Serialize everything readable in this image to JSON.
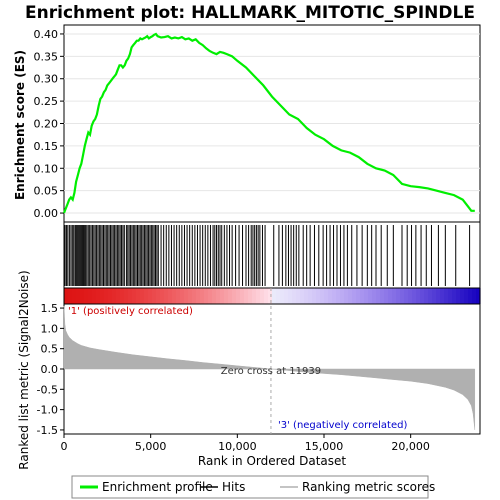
{
  "chart_data": {
    "type": "line",
    "title": "Enrichment plot: HALLMARK_MITOTIC_SPINDLE",
    "top_panel": {
      "ylabel": "Enrichment score (ES)",
      "ylim": [
        -0.02,
        0.42
      ],
      "yticks": [
        "0.00",
        "0.05",
        "0.10",
        "0.15",
        "0.20",
        "0.25",
        "0.30",
        "0.35",
        "0.40"
      ],
      "series": [
        {
          "name": "Enrichment profile",
          "color": "#00ee00",
          "x": [
            0,
            100,
            200,
            300,
            400,
            500,
            600,
            700,
            800,
            900,
            1000,
            1100,
            1200,
            1300,
            1400,
            1500,
            1600,
            1700,
            1800,
            1900,
            2000,
            2100,
            2200,
            2300,
            2400,
            2500,
            2600,
            2700,
            2800,
            2900,
            3000,
            3100,
            3200,
            3300,
            3400,
            3500,
            3600,
            3700,
            3800,
            3900,
            4000,
            4100,
            4200,
            4300,
            4400,
            4500,
            4600,
            4700,
            4800,
            4900,
            5000,
            5100,
            5200,
            5300,
            5400,
            5600,
            5800,
            6000,
            6200,
            6400,
            6600,
            6800,
            7000,
            7200,
            7400,
            7600,
            7800,
            8000,
            8200,
            8400,
            8600,
            8800,
            9000,
            9200,
            9400,
            9700,
            10000,
            10500,
            11000,
            11500,
            12000,
            12500,
            13000,
            13500,
            14000,
            14500,
            15000,
            15500,
            16000,
            16500,
            17000,
            17500,
            18000,
            18500,
            19000,
            19500,
            20000,
            20500,
            21000,
            21500,
            22000,
            22500,
            23000,
            23300,
            23500,
            23700
          ],
          "y": [
            0.0,
            0.01,
            0.02,
            0.03,
            0.035,
            0.03,
            0.045,
            0.07,
            0.085,
            0.1,
            0.11,
            0.13,
            0.15,
            0.165,
            0.18,
            0.175,
            0.195,
            0.205,
            0.21,
            0.22,
            0.24,
            0.255,
            0.26,
            0.27,
            0.275,
            0.285,
            0.29,
            0.295,
            0.3,
            0.305,
            0.31,
            0.32,
            0.33,
            0.33,
            0.325,
            0.33,
            0.34,
            0.345,
            0.355,
            0.37,
            0.375,
            0.38,
            0.385,
            0.385,
            0.39,
            0.388,
            0.39,
            0.392,
            0.395,
            0.39,
            0.393,
            0.395,
            0.398,
            0.4,
            0.395,
            0.392,
            0.393,
            0.395,
            0.39,
            0.392,
            0.39,
            0.393,
            0.388,
            0.39,
            0.385,
            0.388,
            0.38,
            0.375,
            0.368,
            0.362,
            0.358,
            0.355,
            0.36,
            0.358,
            0.355,
            0.35,
            0.34,
            0.325,
            0.305,
            0.285,
            0.26,
            0.24,
            0.22,
            0.21,
            0.19,
            0.175,
            0.165,
            0.15,
            0.14,
            0.135,
            0.125,
            0.11,
            0.1,
            0.095,
            0.085,
            0.065,
            0.06,
            0.058,
            0.055,
            0.05,
            0.045,
            0.04,
            0.03,
            0.015,
            0.005,
            0.005
          ]
        }
      ]
    },
    "hits_x": [
      60,
      140,
      220,
      310,
      400,
      480,
      560,
      640,
      700,
      760,
      820,
      880,
      940,
      1000,
      1060,
      1120,
      1190,
      1250,
      1320,
      1400,
      1480,
      1560,
      1640,
      1720,
      1800,
      1880,
      1960,
      2040,
      2120,
      2200,
      2280,
      2360,
      2440,
      2520,
      2600,
      2680,
      2760,
      2840,
      2920,
      3000,
      3080,
      3160,
      3240,
      3320,
      3400,
      3480,
      3600,
      3680,
      3760,
      3840,
      3920,
      4000,
      4080,
      4160,
      4240,
      4320,
      4400,
      4480,
      4560,
      4640,
      4720,
      4800,
      4880,
      4960,
      5040,
      5120,
      5200,
      5280,
      5360,
      5440,
      5600,
      5750,
      5900,
      6050,
      6200,
      6350,
      6500,
      6650,
      6800,
      6950,
      7100,
      7250,
      7400,
      7550,
      7700,
      7850,
      8000,
      8150,
      8300,
      8450,
      8600,
      8700,
      8800,
      8900,
      9000,
      9100,
      9250,
      9400,
      9550,
      9700,
      9900,
      10100,
      10300,
      10500,
      10650,
      10800,
      10900,
      11000,
      11100,
      11200,
      11300,
      11450,
      11600,
      12100,
      12400,
      12600,
      12800,
      12950,
      13100,
      13250,
      13400,
      13550,
      13800,
      14000,
      14200,
      14450,
      14700,
      14950,
      15150,
      15350,
      15550,
      15750,
      15950,
      16150,
      16350,
      16600,
      16900,
      17200,
      17500,
      17750,
      18000,
      18300,
      18650,
      19000,
      19500,
      19800,
      20050,
      20300,
      20600,
      20900,
      21200,
      21600,
      22000,
      22600,
      23400
    ],
    "bottom_panel": {
      "ylabel": "Ranked list metric (Signal2Noise)",
      "xlabel": "Rank in Ordered Dataset",
      "xlim": [
        0,
        24000
      ],
      "ylim": [
        -1.6,
        1.6
      ],
      "yticks": [
        "1.5",
        "1.0",
        "0.5",
        "0.0",
        "-0.5",
        "-1.0",
        "-1.5"
      ],
      "xticks": [
        "0",
        "5,000",
        "10,000",
        "15,000",
        "20,000"
      ],
      "series": [
        {
          "name": "Ranking metric scores",
          "color": "#b0b0b0",
          "x": [
            0,
            50,
            100,
            200,
            300,
            500,
            800,
            1000,
            1500,
            2000,
            3000,
            4000,
            5000,
            6000,
            7000,
            8000,
            9000,
            10000,
            11000,
            11939,
            13000,
            14000,
            15000,
            16000,
            17000,
            18000,
            19000,
            20000,
            21000,
            22000,
            22500,
            23000,
            23300,
            23500,
            23600,
            23700
          ],
          "y": [
            1.55,
            1.1,
            0.95,
            0.85,
            0.78,
            0.7,
            0.62,
            0.58,
            0.52,
            0.48,
            0.41,
            0.35,
            0.3,
            0.25,
            0.21,
            0.16,
            0.12,
            0.08,
            0.04,
            0.0,
            -0.04,
            -0.08,
            -0.11,
            -0.14,
            -0.18,
            -0.22,
            -0.26,
            -0.3,
            -0.36,
            -0.45,
            -0.52,
            -0.63,
            -0.75,
            -0.9,
            -1.1,
            -1.5
          ]
        }
      ],
      "zero_cross_label": "Zero cross at 11939",
      "zero_cross_x": 11939,
      "pos_label": "'1' (positively correlated)",
      "neg_label": "'3' (negatively correlated)"
    },
    "legend": [
      {
        "label": "Enrichment profile",
        "color": "#00ee00"
      },
      {
        "label": "Hits",
        "color": "#000000"
      },
      {
        "label": "Ranking metric scores",
        "color": "#b0b0b0"
      }
    ]
  }
}
